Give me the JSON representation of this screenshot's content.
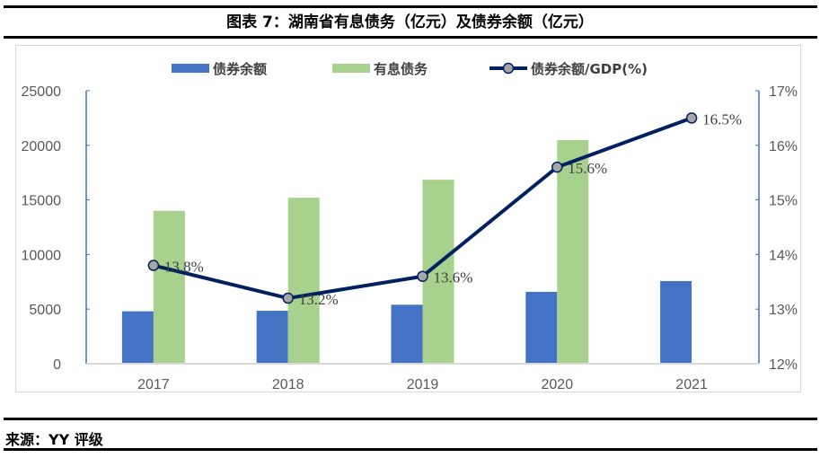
{
  "title": "图表 7：湖南省有息债务（亿元）及债券余额（亿元）",
  "source": "来源：YY 评级",
  "chart_data": {
    "type": "bar+line",
    "categories": [
      "2017",
      "2018",
      "2019",
      "2020",
      "2021"
    ],
    "series": [
      {
        "name": "债券余额",
        "type": "bar",
        "axis": "left",
        "color": "#4472c4",
        "values": [
          4800,
          4850,
          5400,
          6580,
          7570
        ]
      },
      {
        "name": "有息债务",
        "type": "bar",
        "axis": "left",
        "color": "#a9d18e",
        "values": [
          14000,
          15200,
          16850,
          20480,
          null
        ]
      },
      {
        "name": "债券余额/GDP(%)",
        "type": "line",
        "axis": "right",
        "color": "#002060",
        "marker_color": "#a6a6a6",
        "values": [
          13.8,
          13.2,
          13.6,
          15.6,
          16.5
        ],
        "labels": [
          "13.8%",
          "13.2%",
          "13.6%",
          "15.6%",
          "16.5%"
        ]
      }
    ],
    "left_axis": {
      "min": 0,
      "max": 25000,
      "ticks": [
        "0",
        "5000",
        "10000",
        "15000",
        "20000",
        "25000"
      ]
    },
    "right_axis": {
      "min": 12,
      "max": 17,
      "ticks": [
        "12%",
        "13%",
        "14%",
        "15%",
        "16%",
        "17%"
      ]
    },
    "legend": "top",
    "grid": false
  }
}
